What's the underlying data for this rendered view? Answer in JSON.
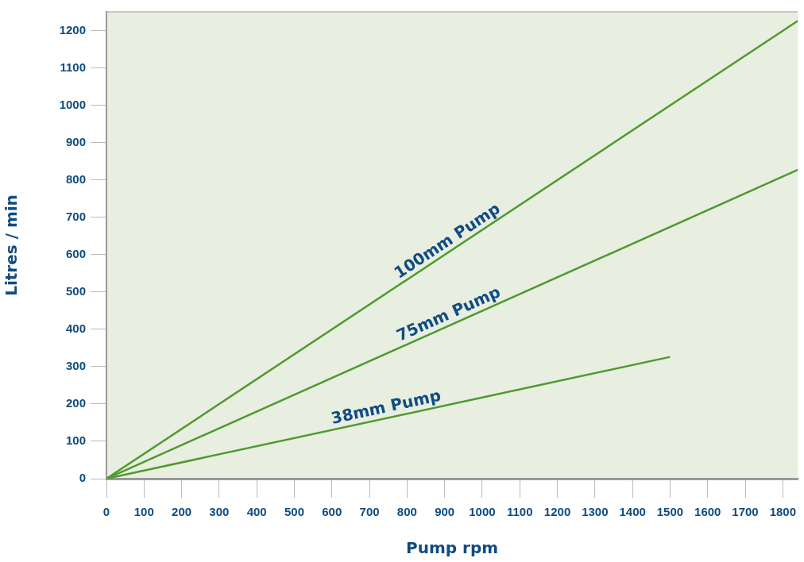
{
  "chart_data": {
    "type": "line",
    "xlabel": "Pump rpm",
    "ylabel": "Litres / min",
    "series": [
      {
        "name": "100mm Pump",
        "color": "#4e9a2f",
        "x": [
          0,
          1840
        ],
        "values": [
          0,
          1226
        ]
      },
      {
        "name": "75mm Pump",
        "color": "#4e9a2f",
        "x": [
          0,
          1840
        ],
        "values": [
          0,
          827
        ]
      },
      {
        "name": "38mm Pump",
        "color": "#4e9a2f",
        "x": [
          0,
          1500
        ],
        "values": [
          0,
          326
        ]
      }
    ],
    "xlim": [
      0,
      1840
    ],
    "xticks": [
      0,
      100,
      200,
      300,
      400,
      500,
      600,
      700,
      800,
      900,
      1000,
      1100,
      1200,
      1300,
      1400,
      1500,
      1600,
      1700,
      1800
    ],
    "ylim": [
      0,
      1250
    ],
    "yticks": [
      0,
      100,
      200,
      300,
      400,
      500,
      600,
      700,
      800,
      900,
      1000,
      1100,
      1200
    ],
    "legend": false,
    "marker": "none",
    "line_style": "solid"
  }
}
